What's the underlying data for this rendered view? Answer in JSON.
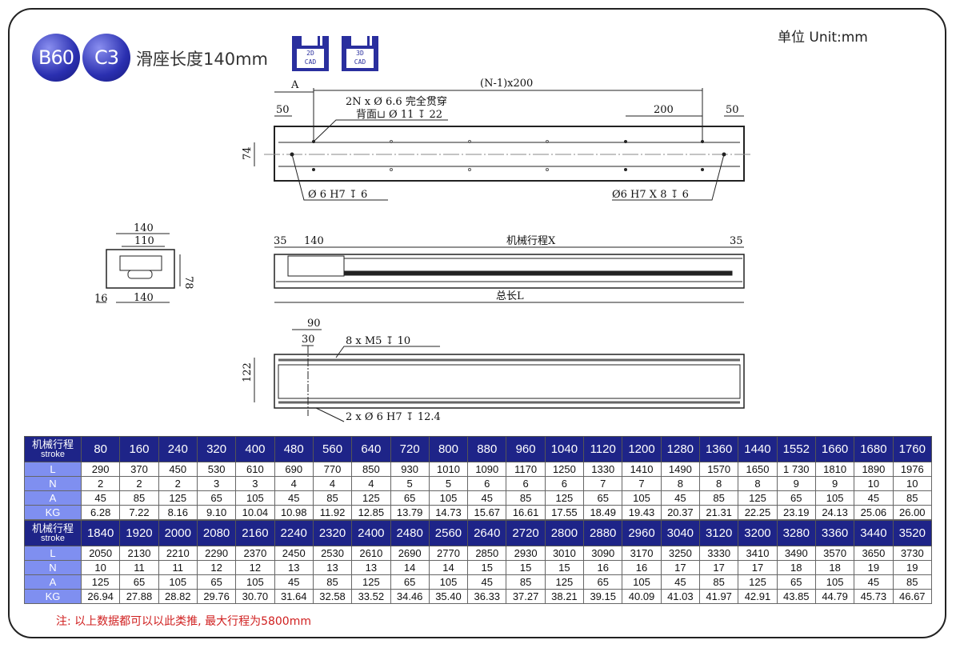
{
  "header": {
    "badge_model": "B60",
    "badge_variant": "C3",
    "title": "滑座长度140mm",
    "unit": "单位 Unit:mm",
    "cad_2d": [
      "2D",
      "CAD"
    ],
    "cad_3d": [
      "3D",
      "CAD"
    ],
    "accent": "#1e2488"
  },
  "drawing": {
    "top_view": {
      "A": "A",
      "pitch": "(N-1)x200",
      "left_50": "50",
      "right_50": "50",
      "spacing": "200",
      "height": "74",
      "hole_note_1": "2N x Ø 6.6 完全贯穿",
      "hole_note_2": "背面⊔ Ø 11 ↧ 22",
      "pin_left": "Ø 6 H7 ↧ 6",
      "pin_right": "Ø6 H7 X 8 ↧ 6"
    },
    "end_view": {
      "top_140": "140",
      "width_110": "110",
      "height_78": "78",
      "offset_16": "16",
      "bottom_140": "140"
    },
    "side_view": {
      "left_35": "35",
      "carriage_140": "140",
      "stroke": "机械行程X",
      "right_35": "35",
      "total": "总长L"
    },
    "bottom_view": {
      "d90": "90",
      "d30": "30",
      "thread_note": "8 x M5 ↧ 10",
      "height": "122",
      "pin_note": "2 x Ø 6 H7 ↧ 12.4"
    }
  },
  "table": {
    "row_labels": {
      "stroke_cn": "机械行程",
      "stroke_en": "stroke",
      "L": "L",
      "N": "N",
      "A": "A",
      "KG": "KG"
    },
    "blocks": [
      {
        "stroke": [
          "80",
          "160",
          "240",
          "320",
          "400",
          "480",
          "560",
          "640",
          "720",
          "800",
          "880",
          "960",
          "1040",
          "1120",
          "1200",
          "1280",
          "1360",
          "1440",
          "1552",
          "1660",
          "1680",
          "1760"
        ],
        "L": [
          "290",
          "370",
          "450",
          "530",
          "610",
          "690",
          "770",
          "850",
          "930",
          "1010",
          "1090",
          "1170",
          "1250",
          "1330",
          "1410",
          "1490",
          "1570",
          "1650",
          "1 730",
          "1810",
          "1890",
          "1976"
        ],
        "N": [
          "2",
          "2",
          "2",
          "3",
          "3",
          "4",
          "4",
          "4",
          "5",
          "5",
          "6",
          "6",
          "6",
          "7",
          "7",
          "8",
          "8",
          "8",
          "9",
          "9",
          "10",
          "10"
        ],
        "A": [
          "45",
          "85",
          "125",
          "65",
          "105",
          "45",
          "85",
          "125",
          "65",
          "105",
          "45",
          "85",
          "125",
          "65",
          "105",
          "45",
          "85",
          "125",
          "65",
          "105",
          "45",
          "85"
        ],
        "KG": [
          "6.28",
          "7.22",
          "8.16",
          "9.10",
          "10.04",
          "10.98",
          "11.92",
          "12.85",
          "13.79",
          "14.73",
          "15.67",
          "16.61",
          "17.55",
          "18.49",
          "19.43",
          "20.37",
          "21.31",
          "22.25",
          "23.19",
          "24.13",
          "25.06",
          "26.00"
        ]
      },
      {
        "stroke": [
          "1840",
          "1920",
          "2000",
          "2080",
          "2160",
          "2240",
          "2320",
          "2400",
          "2480",
          "2560",
          "2640",
          "2720",
          "2800",
          "2880",
          "2960",
          "3040",
          "3120",
          "3200",
          "3280",
          "3360",
          "3440",
          "3520"
        ],
        "L": [
          "2050",
          "2130",
          "2210",
          "2290",
          "2370",
          "2450",
          "2530",
          "2610",
          "2690",
          "2770",
          "2850",
          "2930",
          "3010",
          "3090",
          "3170",
          "3250",
          "3330",
          "3410",
          "3490",
          "3570",
          "3650",
          "3730"
        ],
        "N": [
          "10",
          "11",
          "11",
          "12",
          "12",
          "13",
          "13",
          "13",
          "14",
          "14",
          "15",
          "15",
          "15",
          "16",
          "16",
          "17",
          "17",
          "17",
          "18",
          "18",
          "19",
          "19"
        ],
        "A": [
          "125",
          "65",
          "105",
          "65",
          "105",
          "45",
          "85",
          "125",
          "65",
          "105",
          "45",
          "85",
          "125",
          "65",
          "105",
          "45",
          "85",
          "125",
          "65",
          "105",
          "45",
          "85"
        ],
        "KG": [
          "26.94",
          "27.88",
          "28.82",
          "29.76",
          "30.70",
          "31.64",
          "32.58",
          "33.52",
          "34.46",
          "35.40",
          "36.33",
          "37.27",
          "38.21",
          "39.15",
          "40.09",
          "41.03",
          "41.97",
          "42.91",
          "43.85",
          "44.79",
          "45.73",
          "46.67"
        ]
      }
    ]
  },
  "note": "注: 以上数据都可以以此类推, 最大行程为5800mm"
}
